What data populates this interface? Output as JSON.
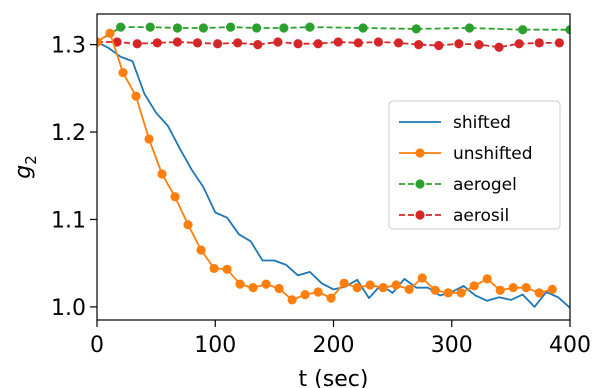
{
  "chart_data": {
    "type": "line",
    "xlabel": "t (sec)",
    "ylabel_main": "g",
    "ylabel_sub": "2",
    "xlim": [
      0,
      400
    ],
    "ylim": [
      0.985,
      1.335
    ],
    "xticks": [
      0,
      100,
      200,
      300,
      400
    ],
    "yticks": [
      1.0,
      1.1,
      1.2,
      1.3
    ],
    "xtick_labels": [
      "0",
      "100",
      "200",
      "300",
      "400"
    ],
    "ytick_labels": [
      "1.0",
      "1.1",
      "1.2",
      "1.3"
    ],
    "grid": false,
    "legend_position": "center-right",
    "series": [
      {
        "name": "shifted",
        "color": "#1f77b4",
        "style": "solid",
        "marker": "none",
        "x": [
          0,
          10,
          20,
          30,
          40,
          50,
          60,
          70,
          80,
          90,
          100,
          110,
          120,
          130,
          140,
          150,
          160,
          170,
          180,
          190,
          200,
          210,
          220,
          230,
          240,
          250,
          260,
          270,
          280,
          290,
          300,
          310,
          320,
          330,
          340,
          350,
          360,
          370,
          380,
          390,
          400
        ],
        "y": [
          1.303,
          1.296,
          1.286,
          1.281,
          1.244,
          1.222,
          1.207,
          1.181,
          1.157,
          1.137,
          1.108,
          1.102,
          1.083,
          1.075,
          1.053,
          1.053,
          1.048,
          1.036,
          1.04,
          1.027,
          1.02,
          1.023,
          1.031,
          1.01,
          1.025,
          1.016,
          1.032,
          1.022,
          1.022,
          1.013,
          1.017,
          1.024,
          1.013,
          1.007,
          1.011,
          1.008,
          1.014,
          1.0,
          1.017,
          1.011,
          0.999
        ]
      },
      {
        "name": "unshifted",
        "color": "#ff7f0e",
        "style": "solid",
        "marker": "circle",
        "x": [
          0,
          11,
          22,
          33,
          44,
          55,
          66,
          77,
          88,
          99,
          110,
          121,
          132,
          143,
          154,
          165,
          176,
          187,
          198,
          209,
          220,
          231,
          242,
          253,
          264,
          275,
          286,
          297,
          308,
          319,
          330,
          341,
          352,
          363,
          374,
          385
        ],
        "y": [
          1.303,
          1.313,
          1.268,
          1.241,
          1.192,
          1.152,
          1.126,
          1.094,
          1.065,
          1.044,
          1.043,
          1.026,
          1.022,
          1.026,
          1.021,
          1.008,
          1.014,
          1.017,
          1.01,
          1.027,
          1.022,
          1.025,
          1.022,
          1.025,
          1.02,
          1.033,
          1.019,
          1.016,
          1.016,
          1.024,
          1.032,
          1.019,
          1.022,
          1.022,
          1.016,
          1.02
        ]
      },
      {
        "name": "aerogel",
        "color": "#2ca02c",
        "style": "dashed",
        "marker": "circle",
        "x": [
          0,
          20,
          45,
          68,
          90,
          113,
          135,
          158,
          180,
          225,
          270,
          315,
          360,
          400
        ],
        "y": [
          1.303,
          1.32,
          1.32,
          1.319,
          1.319,
          1.32,
          1.319,
          1.319,
          1.32,
          1.319,
          1.318,
          1.319,
          1.317,
          1.317
        ]
      },
      {
        "name": "aerosil",
        "color": "#d62728",
        "style": "dashed",
        "marker": "circle",
        "x": [
          0,
          17,
          34,
          51,
          68,
          85,
          102,
          119,
          136,
          153,
          170,
          187,
          204,
          221,
          238,
          255,
          272,
          289,
          306,
          323,
          340,
          357,
          374,
          391
        ],
        "y": [
          1.303,
          1.303,
          1.301,
          1.302,
          1.303,
          1.302,
          1.301,
          1.302,
          1.3,
          1.303,
          1.301,
          1.301,
          1.303,
          1.302,
          1.303,
          1.302,
          1.3,
          1.299,
          1.301,
          1.3,
          1.297,
          1.301,
          1.302,
          1.302
        ]
      }
    ]
  }
}
